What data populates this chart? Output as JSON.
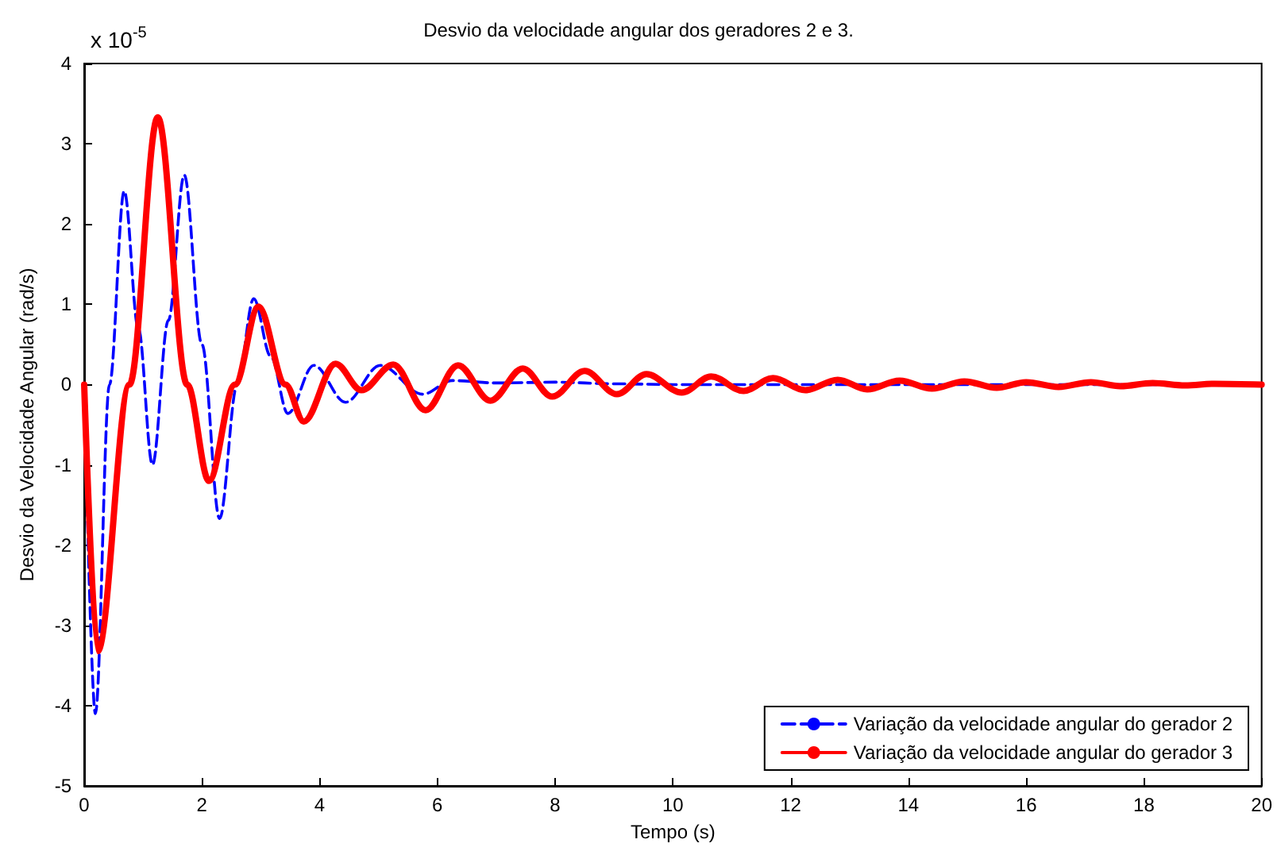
{
  "chart_data": {
    "type": "line",
    "title": "Desvio da velocidade angular dos geradores 2 e 3.",
    "xlabel": "Tempo (s)",
    "ylabel": "Desvio da Velocidade Angular (rad/s)",
    "annotations": [
      "x 10$^{-5}$"
    ],
    "xlim": [
      0,
      20
    ],
    "xticks": [
      0,
      2,
      4,
      6,
      8,
      10,
      12,
      14,
      16,
      18,
      20
    ],
    "ylim": [
      -5,
      4
    ],
    "yticks": [
      -5,
      -4,
      -3,
      -2,
      -1,
      0,
      1,
      2,
      3,
      4
    ],
    "grid": false,
    "legend": "bottom right",
    "marker": "none",
    "series": [
      {
        "name": "Variação da velocidade angular do gerador 2",
        "color": "#0000ff",
        "line_style": "dashed",
        "x": [
          0,
          0.19,
          0.43,
          0.68,
          0.92,
          1.16,
          1.43,
          1.7,
          2.0,
          2.3,
          2.6,
          2.88,
          3.17,
          3.46,
          3.9,
          4.44,
          5.03,
          5.75,
          6.25,
          7,
          8,
          9,
          10,
          12,
          14,
          16,
          18,
          20
        ],
        "values": [
          0,
          -4.1,
          0,
          2.41,
          0.7,
          -1.0,
          0.8,
          2.61,
          0.5,
          -1.67,
          0,
          1.07,
          0.35,
          -0.36,
          0.24,
          -0.22,
          0.24,
          -0.12,
          0.05,
          0.02,
          0.03,
          0.01,
          0,
          0,
          0,
          0,
          0,
          0
        ]
      },
      {
        "name": "Variação da velocidade angular do gerador 3",
        "color": "#ff0000",
        "line_style": "solid",
        "x": [
          0,
          0.23,
          0.77,
          1.25,
          1.75,
          2.12,
          2.56,
          2.96,
          3.42,
          3.73,
          4.27,
          4.71,
          5.25,
          5.8,
          6.35,
          6.9,
          7.45,
          7.95,
          8.5,
          9.05,
          9.55,
          10.15,
          10.65,
          11.2,
          11.7,
          12.25,
          12.8,
          13.3,
          13.85,
          14.4,
          14.95,
          15.5,
          16.0,
          16.55,
          17.1,
          17.6,
          18.15,
          18.7,
          19.2,
          20
        ],
        "values": [
          0,
          -3.32,
          0,
          3.33,
          0,
          -1.2,
          0,
          0.97,
          0,
          -0.46,
          0.26,
          -0.07,
          0.25,
          -0.32,
          0.24,
          -0.2,
          0.2,
          -0.15,
          0.17,
          -0.12,
          0.13,
          -0.1,
          0.1,
          -0.08,
          0.08,
          -0.07,
          0.06,
          -0.06,
          0.05,
          -0.05,
          0.04,
          -0.04,
          0.03,
          -0.03,
          0.03,
          -0.02,
          0.02,
          -0.01,
          0.01,
          0
        ]
      }
    ]
  }
}
